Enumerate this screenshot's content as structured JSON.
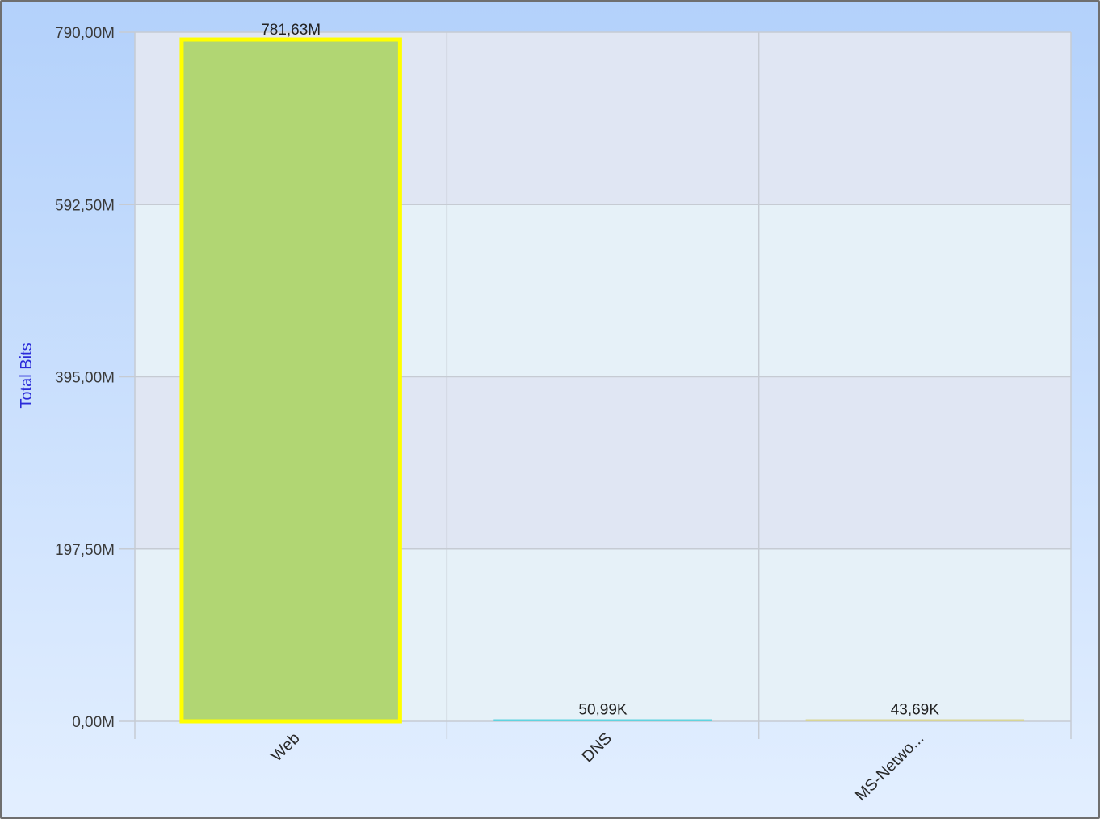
{
  "chart_data": {
    "type": "bar",
    "ylabel": "Total Bits",
    "ylim": [
      0,
      790000000
    ],
    "yticks": [
      {
        "value": 0,
        "label": "0,00M"
      },
      {
        "value": 197500000,
        "label": "197,50M"
      },
      {
        "value": 395000000,
        "label": "395,00M"
      },
      {
        "value": 592500000,
        "label": "592,50M"
      },
      {
        "value": 790000000,
        "label": "790,00M"
      }
    ],
    "categories": [
      "Web",
      "DNS",
      "MS-Netwo..."
    ],
    "values": [
      781630000,
      50990,
      43690
    ],
    "data_labels": [
      "781,63M",
      "50,99K",
      "43,69K"
    ],
    "bar_colors": [
      "#b1d673",
      "#5fd3e0",
      "#d8d596"
    ],
    "highlighted_bar": 0,
    "highlight_color": "#ffff00",
    "grid": true,
    "legend": "none"
  },
  "colors": {
    "background_top": "#b3d1fb",
    "background_bottom": "#e3efff",
    "plot_band_dark": "#e0e6f3",
    "plot_band_light": "#e6f1f8",
    "grid_line": "#c6cbd3",
    "axis_title": "#2b2bd9"
  }
}
